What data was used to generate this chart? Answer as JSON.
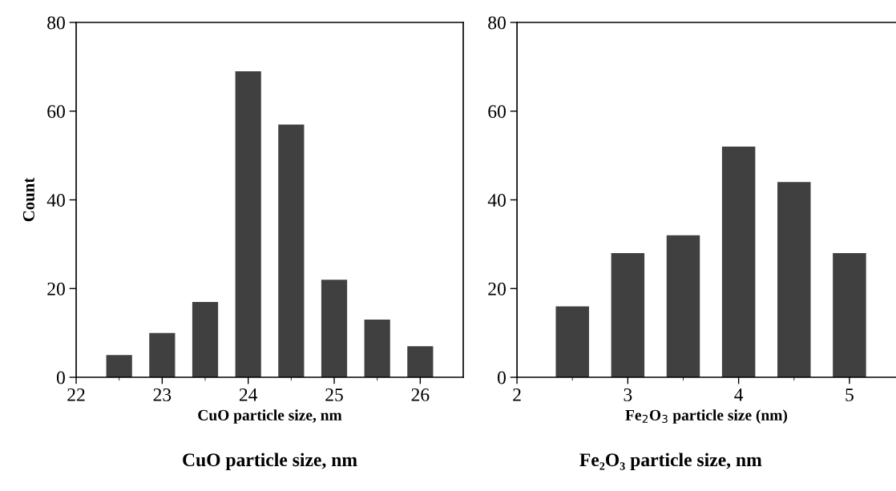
{
  "chart_data": [
    {
      "type": "bar",
      "x": [
        22.5,
        23,
        23.5,
        24,
        24.5,
        25,
        25.5,
        26
      ],
      "values": [
        5,
        10,
        17,
        69,
        57,
        22,
        13,
        7
      ],
      "color": "#404040",
      "xlabel": "CuO particle size, nm",
      "ylabel": "Count",
      "xlim": [
        22,
        26.5
      ],
      "xticks": [
        22,
        23,
        24,
        25,
        26
      ],
      "ylim": [
        0,
        80
      ],
      "yticks": [
        0,
        20,
        40,
        60,
        80
      ],
      "grid": false,
      "legend": false,
      "annotations": [
        "CuO particle size, nm"
      ]
    },
    {
      "type": "bar",
      "x": [
        2.5,
        3,
        3.5,
        4,
        4.5,
        5
      ],
      "values": [
        16,
        28,
        32,
        52,
        44,
        28
      ],
      "color": "#404040",
      "xlabel": "Fe$_{2}$O$_{3}$ particle size (nm)",
      "xlim": [
        2,
        5.42
      ],
      "xticks": [
        2,
        3,
        4,
        5
      ],
      "ylim": [
        0,
        80
      ],
      "yticks": [
        0,
        20,
        40,
        60,
        80
      ],
      "grid": false,
      "legend": false,
      "annotations": [
        "Fe₂O₃ particle size, nm"
      ]
    }
  ]
}
